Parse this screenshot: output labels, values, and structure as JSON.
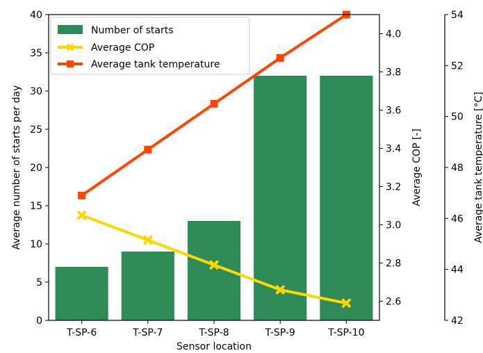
{
  "chart_data": {
    "type": "bar",
    "xlabel": "Sensor location",
    "categories": [
      "T-SP-6",
      "T-SP-7",
      "T-SP-8",
      "T-SP-9",
      "T-SP-10"
    ],
    "series": [
      {
        "name": "Number of starts",
        "type": "bar",
        "axis": "left",
        "color": "#2e8b57",
        "values": [
          7,
          9,
          13,
          32,
          32
        ]
      },
      {
        "name": "Average COP",
        "type": "line",
        "axis": "right",
        "color": "#ffd700",
        "marker": "x",
        "values": [
          3.05,
          2.92,
          2.79,
          2.66,
          2.59
        ]
      },
      {
        "name": "Average tank temperature",
        "type": "line",
        "axis": "far-right",
        "color": "#ff4500",
        "marker": "square",
        "values": [
          46.9,
          48.7,
          50.5,
          52.3,
          54.0
        ]
      }
    ],
    "axes": {
      "left": {
        "label": "Average number of starts per day",
        "range": [
          0,
          40
        ],
        "ticks": [
          "0",
          "5",
          "10",
          "15",
          "20",
          "25",
          "30",
          "35",
          "40"
        ]
      },
      "right": {
        "label": "Average COP [-]",
        "range": [
          2.5,
          4.1
        ],
        "ticks": [
          "2.6",
          "2.8",
          "3.0",
          "3.2",
          "3.4",
          "3.6",
          "3.8",
          "4.0"
        ]
      },
      "far_right": {
        "label": "Average tank temperature [°C]",
        "range": [
          42,
          54
        ],
        "ticks": [
          "42",
          "44",
          "46",
          "48",
          "50",
          "52",
          "54"
        ]
      }
    },
    "legend": {
      "position": "top-left",
      "entries": [
        "Number of starts",
        "Average COP",
        "Average tank temperature"
      ]
    },
    "grid": false
  }
}
